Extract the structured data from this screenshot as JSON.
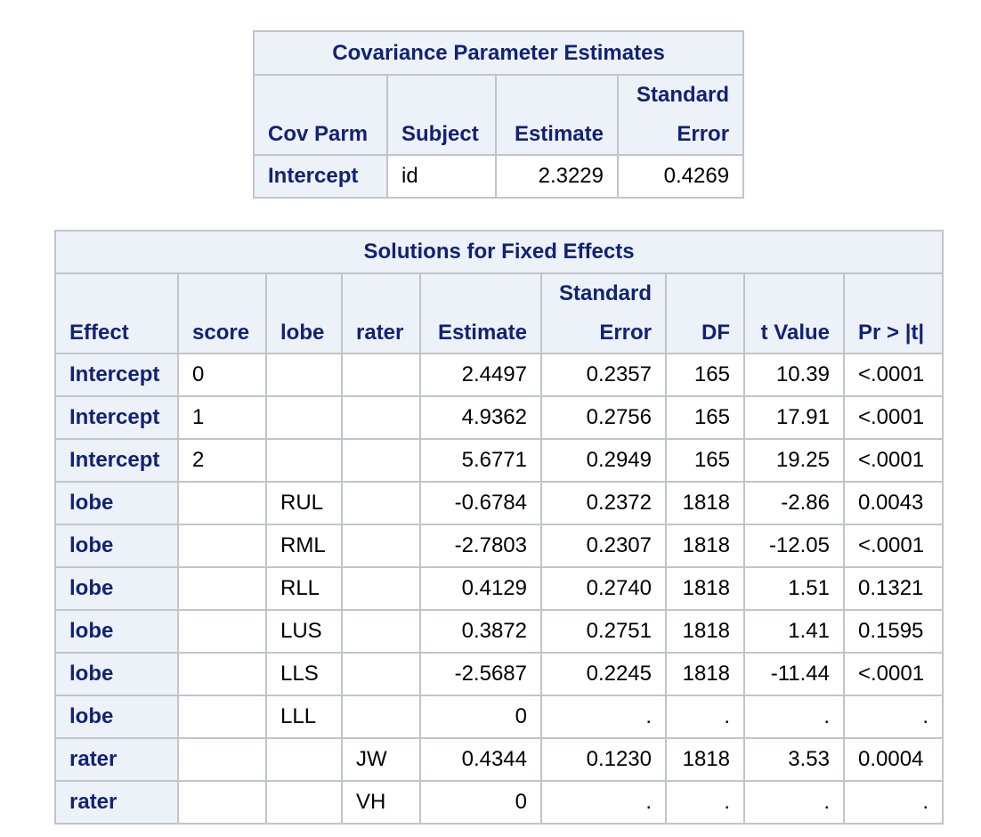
{
  "covariance": {
    "title": "Covariance Parameter Estimates",
    "headers": {
      "cov_parm": "Cov Parm",
      "subject": "Subject",
      "estimate": "Estimate",
      "std_error_line1": "Standard",
      "std_error_line2": "Error"
    },
    "rows": [
      {
        "cov_parm": "Intercept",
        "subject": "id",
        "estimate": "2.3229",
        "std_error": "0.4269"
      }
    ]
  },
  "fixed_effects": {
    "title": "Solutions for Fixed Effects",
    "headers": {
      "effect": "Effect",
      "score": "score",
      "lobe": "lobe",
      "rater": "rater",
      "estimate": "Estimate",
      "std_error_line1": "Standard",
      "std_error_line2": "Error",
      "df": "DF",
      "t_value": "t Value",
      "pr": "Pr > |t|"
    },
    "rows": [
      {
        "effect": "Intercept",
        "score": "0",
        "lobe": "",
        "rater": "",
        "estimate": "2.4497",
        "std_error": "0.2357",
        "df": "165",
        "t_value": "10.39",
        "pr": "<.0001"
      },
      {
        "effect": "Intercept",
        "score": "1",
        "lobe": "",
        "rater": "",
        "estimate": "4.9362",
        "std_error": "0.2756",
        "df": "165",
        "t_value": "17.91",
        "pr": "<.0001"
      },
      {
        "effect": "Intercept",
        "score": "2",
        "lobe": "",
        "rater": "",
        "estimate": "5.6771",
        "std_error": "0.2949",
        "df": "165",
        "t_value": "19.25",
        "pr": "<.0001"
      },
      {
        "effect": "lobe",
        "score": "",
        "lobe": "RUL",
        "rater": "",
        "estimate": "-0.6784",
        "std_error": "0.2372",
        "df": "1818",
        "t_value": "-2.86",
        "pr": "0.0043"
      },
      {
        "effect": "lobe",
        "score": "",
        "lobe": "RML",
        "rater": "",
        "estimate": "-2.7803",
        "std_error": "0.2307",
        "df": "1818",
        "t_value": "-12.05",
        "pr": "<.0001"
      },
      {
        "effect": "lobe",
        "score": "",
        "lobe": "RLL",
        "rater": "",
        "estimate": "0.4129",
        "std_error": "0.2740",
        "df": "1818",
        "t_value": "1.51",
        "pr": "0.1321"
      },
      {
        "effect": "lobe",
        "score": "",
        "lobe": "LUS",
        "rater": "",
        "estimate": "0.3872",
        "std_error": "0.2751",
        "df": "1818",
        "t_value": "1.41",
        "pr": "0.1595"
      },
      {
        "effect": "lobe",
        "score": "",
        "lobe": "LLS",
        "rater": "",
        "estimate": "-2.5687",
        "std_error": "0.2245",
        "df": "1818",
        "t_value": "-11.44",
        "pr": "<.0001"
      },
      {
        "effect": "lobe",
        "score": "",
        "lobe": "LLL",
        "rater": "",
        "estimate": "0",
        "std_error": ".",
        "df": ".",
        "t_value": ".",
        "pr": "."
      },
      {
        "effect": "rater",
        "score": "",
        "lobe": "",
        "rater": "JW",
        "estimate": "0.4344",
        "std_error": "0.1230",
        "df": "1818",
        "t_value": "3.53",
        "pr": "0.0004"
      },
      {
        "effect": "rater",
        "score": "",
        "lobe": "",
        "rater": "VH",
        "estimate": "0",
        "std_error": ".",
        "df": ".",
        "t_value": ".",
        "pr": "."
      }
    ]
  }
}
